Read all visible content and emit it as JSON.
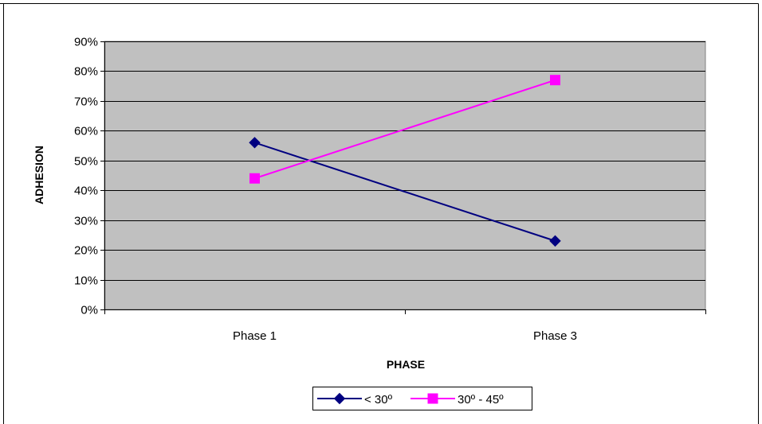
{
  "chart_data": {
    "type": "line",
    "title": "",
    "xlabel": "PHASE",
    "ylabel": "ADHESION",
    "categories": [
      "Phase 1",
      "Phase 3"
    ],
    "ylim": [
      0,
      0.9
    ],
    "y_ticks": [
      "0%",
      "10%",
      "20%",
      "30%",
      "40%",
      "50%",
      "60%",
      "70%",
      "80%",
      "90%"
    ],
    "grid": true,
    "legend_position": "bottom",
    "plot_background": "#c0c0c0",
    "series": [
      {
        "name": "< 30º",
        "values": [
          0.56,
          0.23
        ],
        "color": "#000080",
        "marker": "diamond"
      },
      {
        "name": "30º - 45º",
        "values": [
          0.44,
          0.77
        ],
        "color": "#ff00ff",
        "marker": "square"
      }
    ]
  }
}
